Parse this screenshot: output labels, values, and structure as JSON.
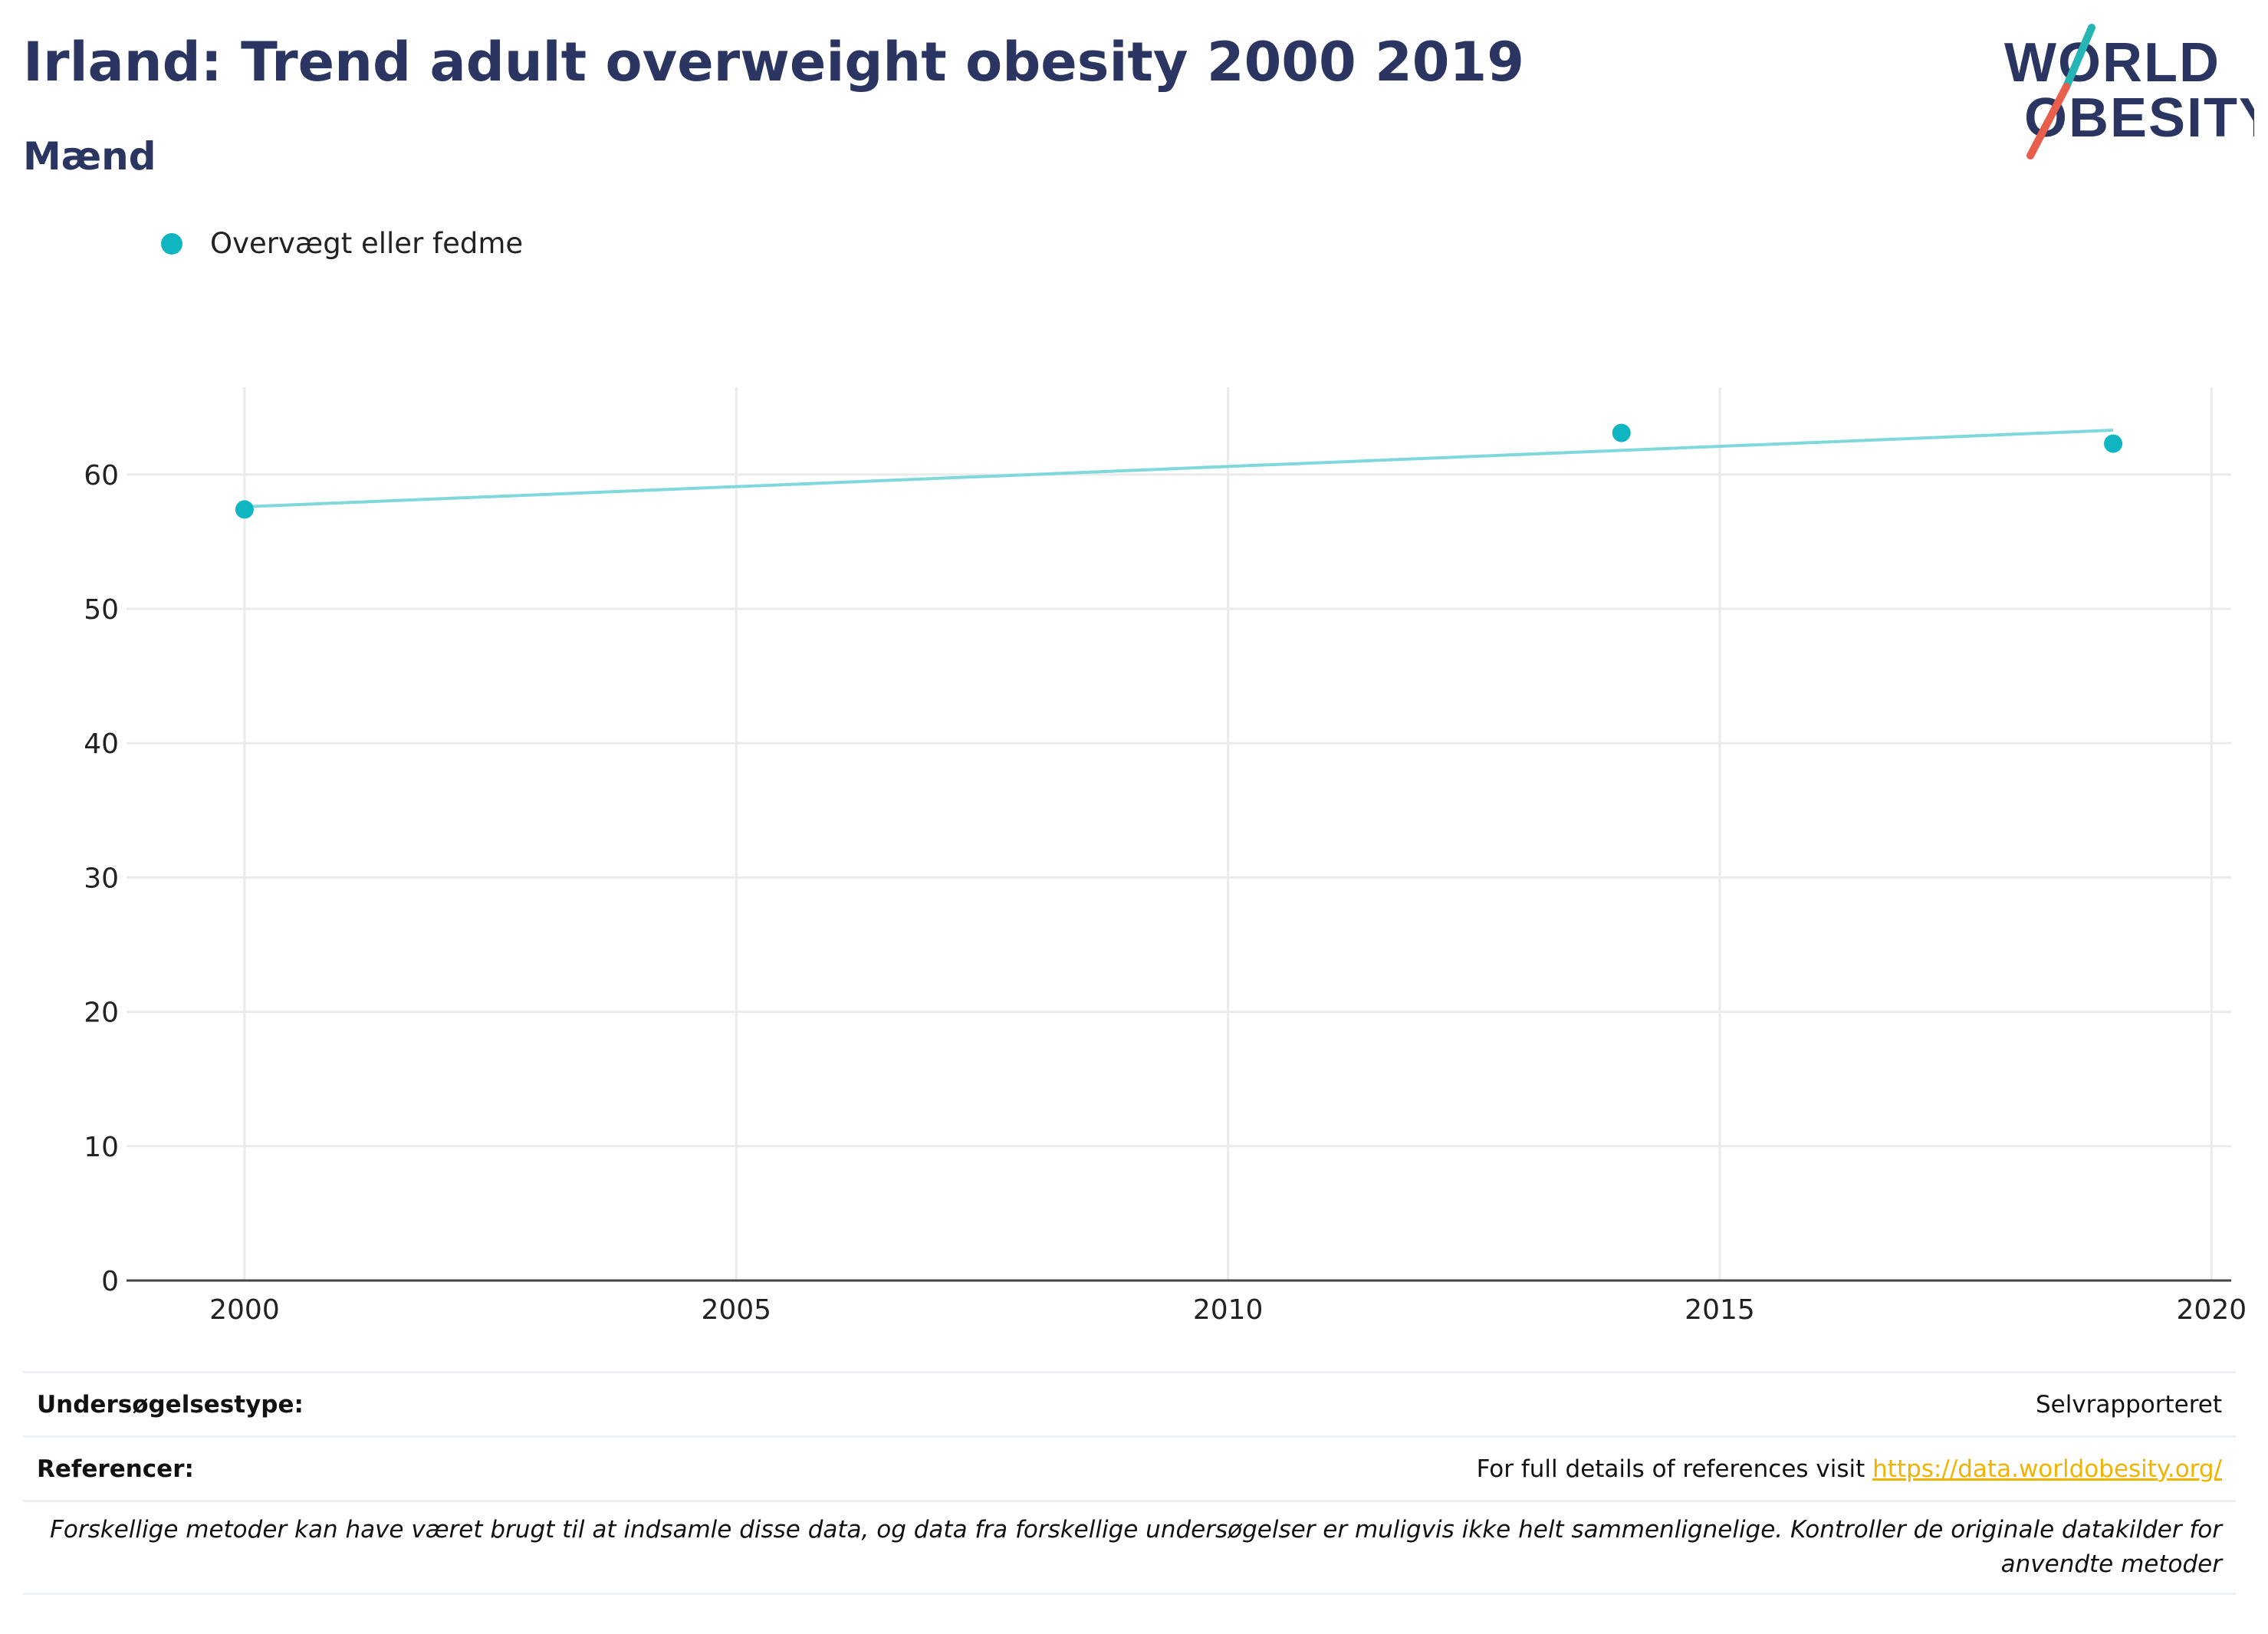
{
  "header": {
    "title": "Irland: Trend adult overweight obesity 2000 2019",
    "subtitle": "Mænd"
  },
  "logo": {
    "line1": "WORLD",
    "line2": "OBESITY",
    "colors": {
      "text": "#2a3561",
      "slash_teal": "#26b5b5",
      "slash_red": "#e8604c"
    }
  },
  "legend": {
    "label": "Overvægt eller fedme",
    "color": "#0fb5c0"
  },
  "chart_data": {
    "type": "scatter",
    "series": [
      {
        "name": "Overvægt eller fedme",
        "x": [
          2000,
          2014,
          2019
        ],
        "y": [
          57.4,
          63.1,
          62.3
        ],
        "color": "#0fb5c0"
      }
    ],
    "trendline": {
      "x": [
        2000,
        2019
      ],
      "y": [
        57.6,
        63.3
      ],
      "color": "#7fd8dc"
    },
    "xlim": [
      1998.8,
      2020.2
    ],
    "ylim": [
      0,
      66.5
    ],
    "x_ticks": [
      2000,
      2005,
      2010,
      2015,
      2020
    ],
    "y_ticks": [
      0,
      10,
      20,
      30,
      40,
      50,
      60
    ],
    "grid": true,
    "legend_position": "top-left"
  },
  "info": {
    "survey_label": "Undersøgelsestype:",
    "survey_value": "Selvrapporteret",
    "references_label": "Referencer:",
    "references_text": "For full details of references visit ",
    "references_link": "https://data.worldobesity.org/",
    "note": "Forskellige metoder kan have været brugt til at indsamle disse data, og data fra forskellige undersøgelser er muligvis ikke helt sammenlignelige. Kontroller de originale datakilder for anvendte metoder"
  }
}
